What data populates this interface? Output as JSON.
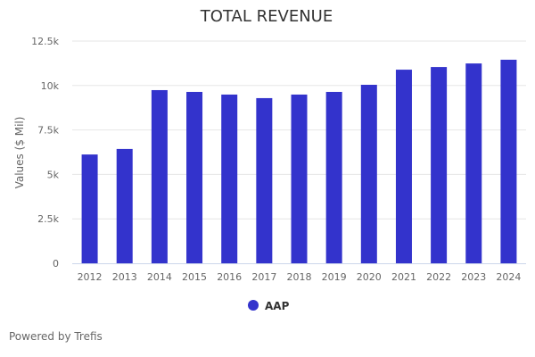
{
  "chart_data": {
    "type": "bar",
    "title": "TOTAL REVENUE",
    "xlabel": "",
    "ylabel": "Values ($ Mil)",
    "ylim": [
      0,
      12500
    ],
    "yticks": [
      0,
      2500,
      5000,
      7500,
      10000,
      12500
    ],
    "ytick_labels": [
      "0",
      "2.5k",
      "5k",
      "7.5k",
      "10k",
      "12.5k"
    ],
    "grid": true,
    "legend_position": "bottom-center",
    "categories": [
      "2012",
      "2013",
      "2014",
      "2015",
      "2016",
      "2017",
      "2018",
      "2019",
      "2020",
      "2021",
      "2022",
      "2023",
      "2024"
    ],
    "series": [
      {
        "name": "AAP",
        "color": "#3333cc",
        "values": [
          6120,
          6430,
          9740,
          9640,
          9490,
          9290,
          9490,
          9640,
          10040,
          10890,
          11040,
          11240,
          11450
        ]
      }
    ]
  },
  "footer": {
    "credit": "Powered by Trefis"
  }
}
